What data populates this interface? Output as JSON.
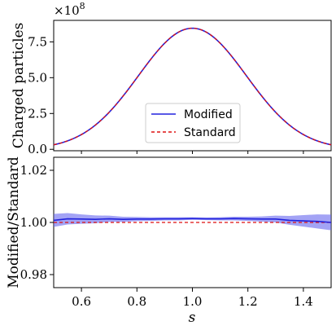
{
  "chart_data": [
    {
      "type": "line",
      "panel": "top",
      "ylabel": "Charged particles",
      "y_offset_label": "×10",
      "y_offset_exponent": "8",
      "xlim": [
        0.5,
        1.5
      ],
      "ylim": [
        -0.1,
        9.0
      ],
      "y_scale": 100000000,
      "yticks": [
        0.0,
        2.5,
        5.0,
        7.5
      ],
      "ytick_labels": [
        "0.0",
        "2.5",
        "5.0",
        "7.5"
      ],
      "gaussian": {
        "amplitude": 8.45,
        "mean": 1.0,
        "sigma": 0.195
      },
      "series": [
        {
          "name": "Modified",
          "color": "#2222dd",
          "style": "solid"
        },
        {
          "name": "Standard",
          "color": "#dd1111",
          "style": "dashed"
        }
      ],
      "legend_placement": "lower center",
      "grid": false
    },
    {
      "type": "line",
      "panel": "bottom",
      "xlabel": "s",
      "ylabel": "Modified/Standard",
      "xlim": [
        0.5,
        1.5
      ],
      "ylim": [
        0.975,
        1.025
      ],
      "xticks": [
        0.6,
        0.8,
        1.0,
        1.2,
        1.4
      ],
      "xtick_labels": [
        "0.6",
        "0.8",
        "1.0",
        "1.2",
        "1.4"
      ],
      "yticks": [
        0.98,
        1.0,
        1.02
      ],
      "ytick_labels": [
        "0.98",
        "1.00",
        "1.02"
      ],
      "series": [
        {
          "name": "Modified",
          "color": "#2222dd",
          "band_color": "#6666ee",
          "x": [
            0.5,
            0.55,
            0.6,
            0.65,
            0.7,
            0.75,
            0.8,
            0.85,
            0.9,
            0.95,
            1.0,
            1.05,
            1.1,
            1.15,
            1.2,
            1.25,
            1.3,
            1.35,
            1.4,
            1.45,
            1.5
          ],
          "y": [
            1.0008,
            1.0014,
            1.0013,
            1.0012,
            1.0014,
            1.0012,
            1.0013,
            1.0013,
            1.0014,
            1.0014,
            1.0015,
            1.0014,
            1.0014,
            1.0015,
            1.0014,
            1.0013,
            1.0013,
            1.0008,
            1.0006,
            1.0004,
            1.0
          ],
          "err": [
            0.0025,
            0.0022,
            0.0018,
            0.0015,
            0.0012,
            0.001,
            0.0008,
            0.0007,
            0.0006,
            0.0006,
            0.0005,
            0.0005,
            0.0006,
            0.0007,
            0.0008,
            0.001,
            0.0013,
            0.0017,
            0.0022,
            0.0027,
            0.003
          ]
        },
        {
          "name": "Standard",
          "color": "#dd1111",
          "style": "dashed",
          "value": 1.0
        }
      ],
      "grid": false
    }
  ]
}
